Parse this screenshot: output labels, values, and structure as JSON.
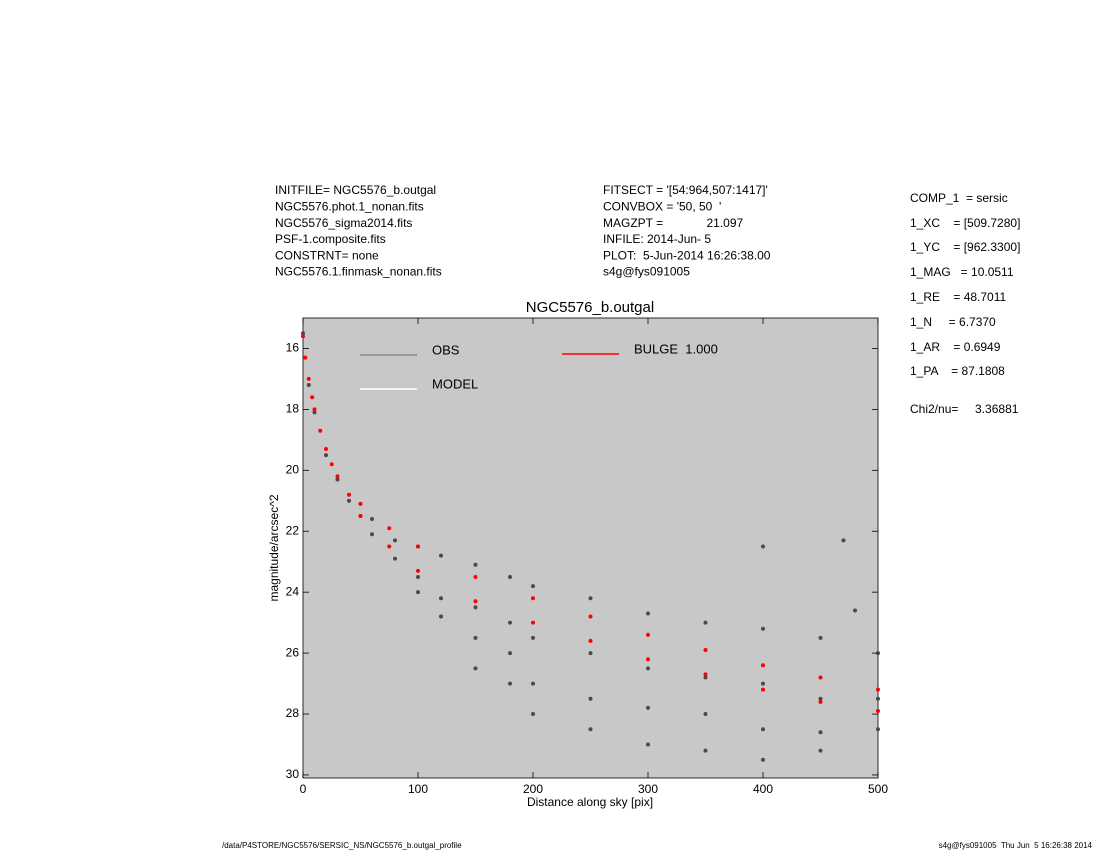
{
  "header": {
    "left": [
      "INITFILE= NGC5576_b.outgal",
      "NGC5576.phot.1_nonan.fits",
      "NGC5576_sigma2014.fits",
      "PSF-1.composite.fits",
      "CONSTRNT= none",
      "NGC5576.1.finmask_nonan.fits"
    ],
    "middle": [
      "FITSECT = '[54:964,507:1417]'",
      "CONVBOX = '50, 50  '",
      "MAGZPT =             21.097",
      "INFILE: 2014-Jun- 5",
      "PLOT:  5-Jun-2014 16:26:38.00",
      "s4g@fys091005"
    ],
    "right": [
      "COMP_1  = sersic",
      "1_XC    = [509.7280]",
      "1_YC    = [962.3300]",
      "1_MAG   = 10.0511",
      "1_RE    = 48.7011",
      "1_N     = 6.7370",
      "1_AR    = 0.6949",
      "1_PA    = 87.1808",
      "Chi2/nu=     3.36881"
    ]
  },
  "footer": {
    "left": "/data/P4STORE/NGC5576/SERSIC_NS/NGC5576_b.outgal_profile",
    "right": "s4g@fys091005  Thu Jun  5 16:26:38 2014"
  },
  "chart_data": {
    "type": "scatter",
    "title": "NGC5576_b.outgal",
    "x_label": "Distance along sky [pix]",
    "y_label": "magnitude/arcsec^2",
    "xlim": [
      0,
      500
    ],
    "xticks": [
      0,
      100,
      200,
      300,
      400,
      500
    ],
    "ylim": [
      30.1,
      15
    ],
    "yticks": [
      16,
      18,
      20,
      22,
      24,
      26,
      28,
      30
    ],
    "background": "#c8c8c8",
    "series": [
      {
        "name": "OBS",
        "color": "#4a4a4a",
        "legend_color": "#888888",
        "x": [
          0,
          5,
          10,
          20,
          30,
          40,
          50,
          60,
          60,
          80,
          80,
          100,
          100,
          100,
          120,
          120,
          120,
          150,
          150,
          150,
          150,
          180,
          180,
          180,
          180,
          200,
          200,
          200,
          200,
          250,
          250,
          250,
          250,
          300,
          300,
          300,
          300,
          350,
          350,
          350,
          350,
          400,
          400,
          400,
          400,
          450,
          450,
          450,
          450,
          500,
          500,
          500,
          400,
          470,
          480
        ],
        "values": [
          15.5,
          17.2,
          18.1,
          19.5,
          20.3,
          21.0,
          21.5,
          21.6,
          22.1,
          22.3,
          22.9,
          22.5,
          23.5,
          24.0,
          22.8,
          24.2,
          24.8,
          23.1,
          24.5,
          25.5,
          26.5,
          23.5,
          25.0,
          26.0,
          27.0,
          23.8,
          25.5,
          27.0,
          28.0,
          24.2,
          26.0,
          27.5,
          28.5,
          24.7,
          26.5,
          27.8,
          29.0,
          25.0,
          26.8,
          28.0,
          29.2,
          25.2,
          27.0,
          28.5,
          29.5,
          25.5,
          27.5,
          28.6,
          29.2,
          26.0,
          27.5,
          28.5,
          22.5,
          22.3,
          24.6
        ]
      },
      {
        "name": "MODEL",
        "color": "#ffffff",
        "legend_color": "#ffffff",
        "x": [],
        "values": []
      },
      {
        "name": "BULGE  1.000",
        "color": "#ff0000",
        "legend_color": "#ff0000",
        "x": [
          0,
          2,
          5,
          8,
          10,
          15,
          20,
          25,
          30,
          40,
          50,
          50,
          75,
          75,
          100,
          100,
          150,
          150,
          200,
          200,
          250,
          250,
          300,
          300,
          350,
          350,
          400,
          400,
          450,
          450,
          500,
          500
        ],
        "values": [
          15.6,
          16.3,
          17.0,
          17.6,
          18.0,
          18.7,
          19.3,
          19.8,
          20.2,
          20.8,
          21.1,
          21.5,
          21.9,
          22.5,
          22.5,
          23.3,
          23.5,
          24.3,
          24.2,
          25.0,
          24.8,
          25.6,
          25.4,
          26.2,
          25.9,
          26.7,
          26.4,
          27.2,
          26.8,
          27.6,
          27.2,
          27.9
        ]
      }
    ]
  }
}
